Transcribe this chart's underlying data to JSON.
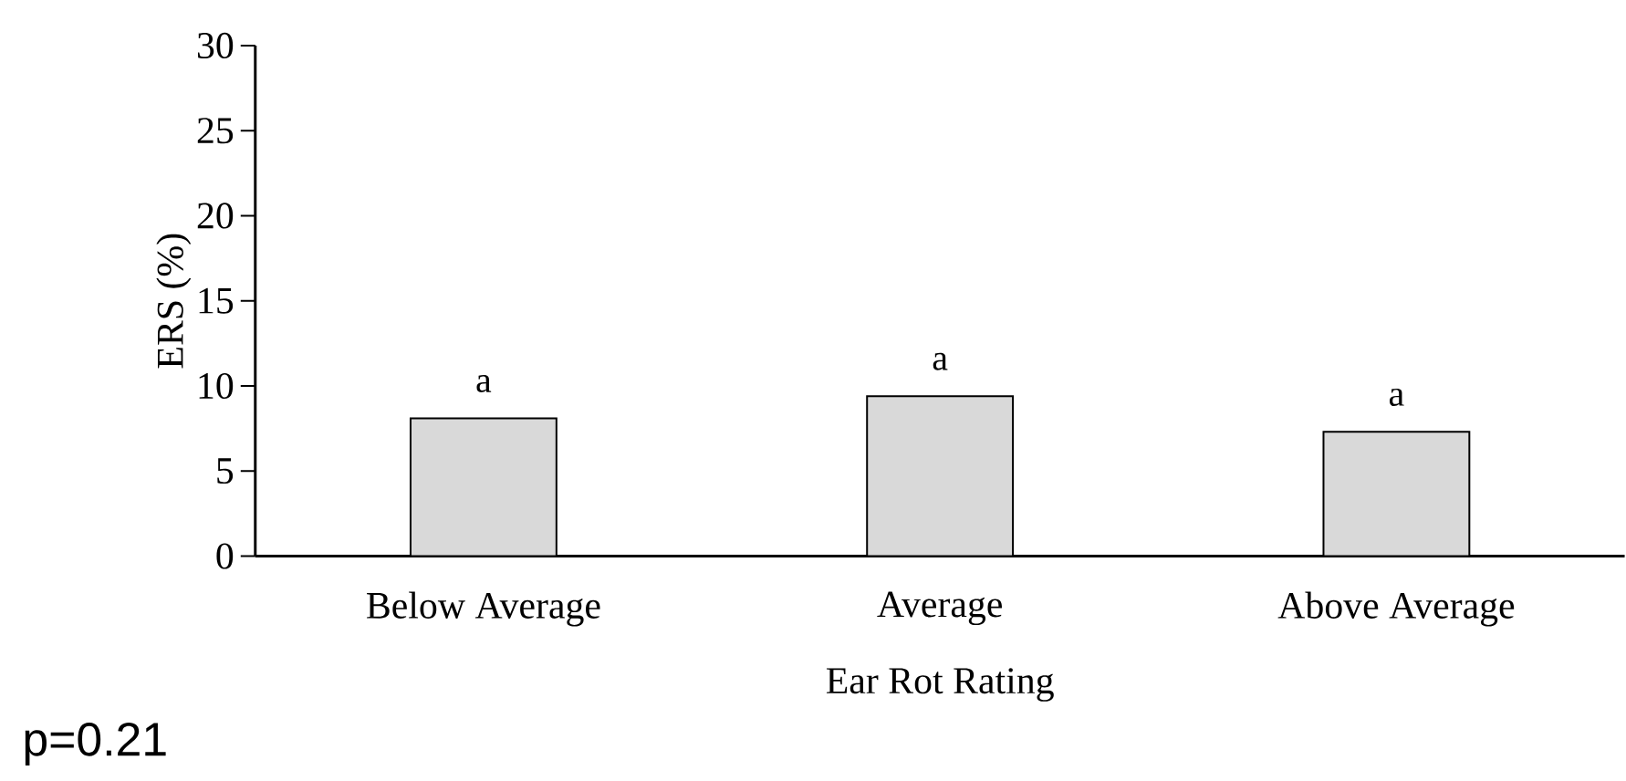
{
  "chart_data": {
    "type": "bar",
    "categories": [
      "Below Average",
      "Average",
      "Above Average"
    ],
    "values": [
      8.1,
      9.4,
      7.3
    ],
    "color": "#d9d9d9",
    "xlabel": "Ear Rot Rating",
    "ylabel": "ERS (%)",
    "ylim": [
      0,
      30
    ],
    "yticks": [
      0,
      5,
      10,
      15,
      20,
      25,
      30
    ],
    "annotations": [
      {
        "text": "a",
        "x": "Below Average",
        "y": 8.1
      },
      {
        "text": "a",
        "x": "Average",
        "y": 9.4
      },
      {
        "text": "a",
        "x": "Above Average",
        "y": 7.3
      },
      "p=0.21"
    ]
  }
}
